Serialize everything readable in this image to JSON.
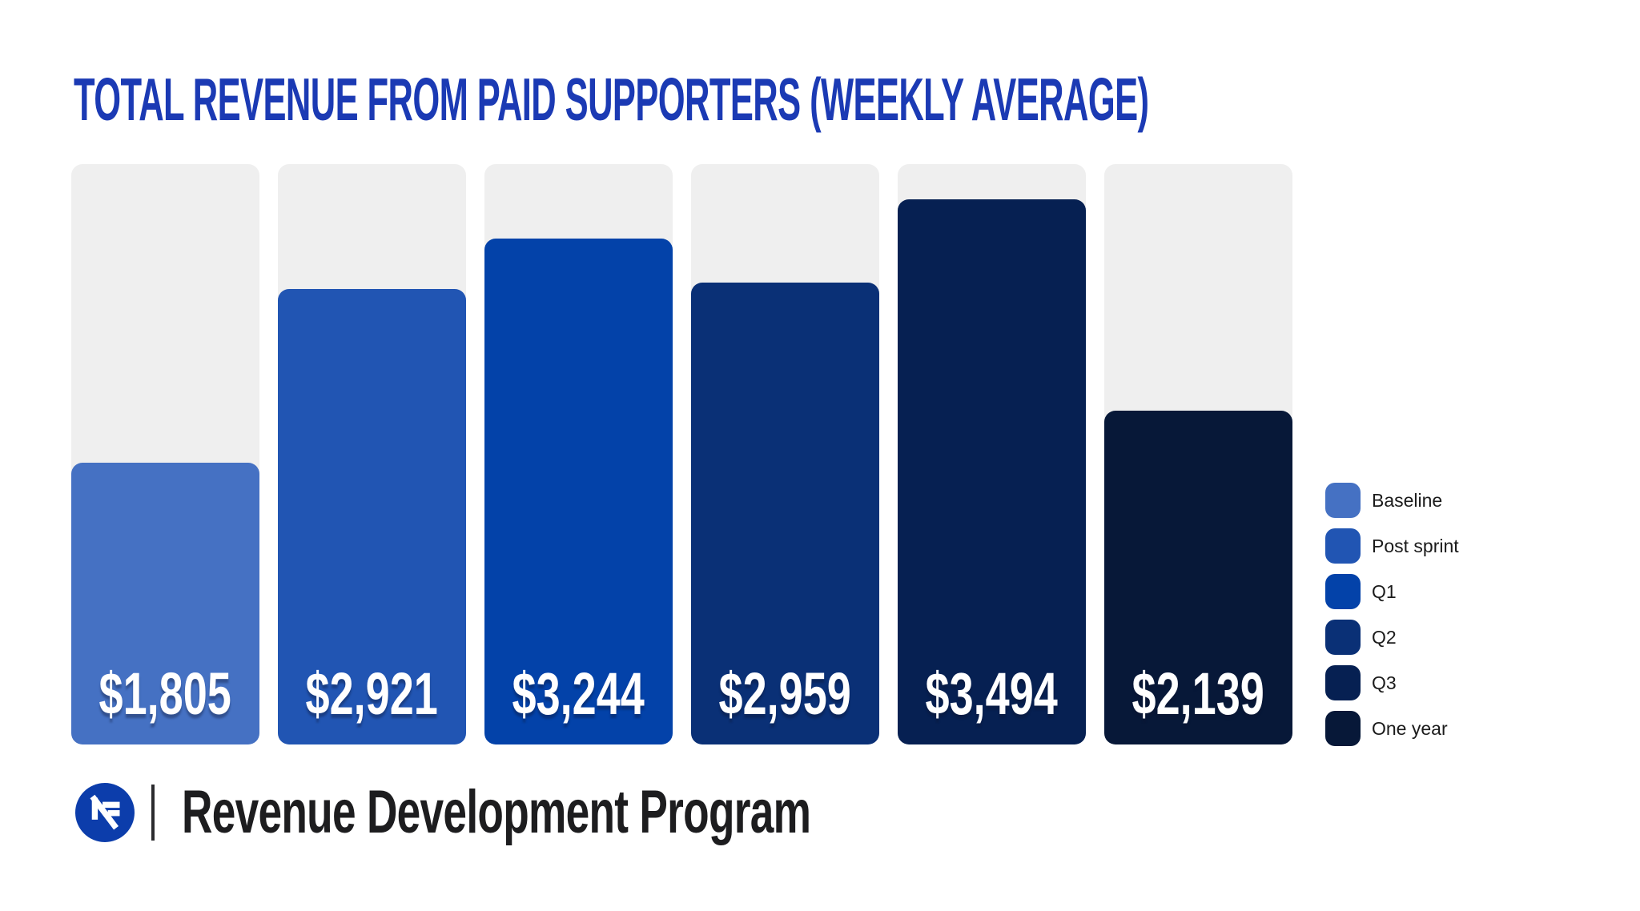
{
  "title": {
    "text": "TOTAL REVENUE FROM PAID SUPPORTERS (WEEKLY AVERAGE)",
    "color": "#1b3ab4"
  },
  "chart_data": {
    "type": "bar",
    "title": "Total revenue from paid supporters (weekly average)",
    "categories": [
      "Baseline",
      "Post sprint",
      "Q1",
      "Q2",
      "Q3",
      "One year"
    ],
    "values": [
      1805,
      2921,
      3244,
      2959,
      3494,
      2139
    ],
    "value_labels": [
      "$1,805",
      "$2,921",
      "$3,244",
      "$2,959",
      "$3,494",
      "$2,139"
    ],
    "bar_colors": [
      "#4571c3",
      "#2155b3",
      "#0342a9",
      "#0a3076",
      "#062052",
      "#071838"
    ],
    "track_color": "#efefef",
    "ylim": [
      0,
      3720
    ],
    "grid": false,
    "value_label_color": "#ffffff",
    "legend_position": "right",
    "legend": [
      {
        "label": "Baseline",
        "color": "#4571c3"
      },
      {
        "label": "Post sprint",
        "color": "#2155b3"
      },
      {
        "label": "Q1",
        "color": "#0342a9"
      },
      {
        "label": "Q2",
        "color": "#0a3076"
      },
      {
        "label": "Q3",
        "color": "#062052"
      },
      {
        "label": "One year",
        "color": "#071838"
      }
    ]
  },
  "footer": {
    "brand": "Revenue Development Program",
    "logo_icon": "n-mark-logo-icon",
    "logo_color": "#0c3dab"
  }
}
